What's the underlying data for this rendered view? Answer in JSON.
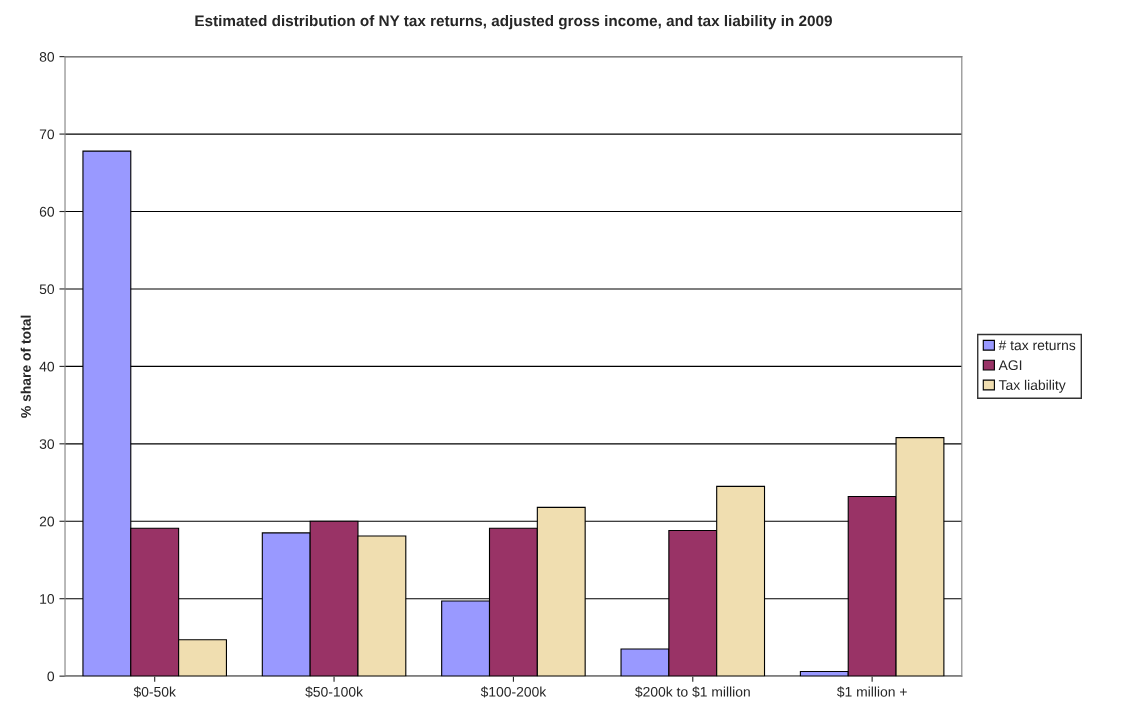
{
  "chart_data": {
    "type": "bar",
    "title": "Estimated distribution of NY tax returns, adjusted gross income, and tax liability in 2009",
    "ylabel": "% share of total",
    "categories": [
      "$0-50k",
      "$50-100k",
      "$100-200k",
      "$200k to $1 million",
      "$1 million +"
    ],
    "series": [
      {
        "name": "# tax returns",
        "color": "#9999ff",
        "values": [
          67.8,
          18.5,
          9.7,
          3.5,
          0.6
        ]
      },
      {
        "name": "AGI",
        "color": "#993366",
        "values": [
          19.1,
          20.0,
          19.1,
          18.8,
          23.2
        ]
      },
      {
        "name": "Tax liability",
        "color": "#f0deb0",
        "values": [
          4.7,
          18.1,
          21.8,
          24.5,
          30.8
        ]
      }
    ],
    "ylim": [
      0,
      80
    ],
    "yticks": [
      0,
      10,
      20,
      30,
      40,
      50,
      60,
      70,
      80
    ],
    "grid": "y",
    "legend": "right"
  }
}
